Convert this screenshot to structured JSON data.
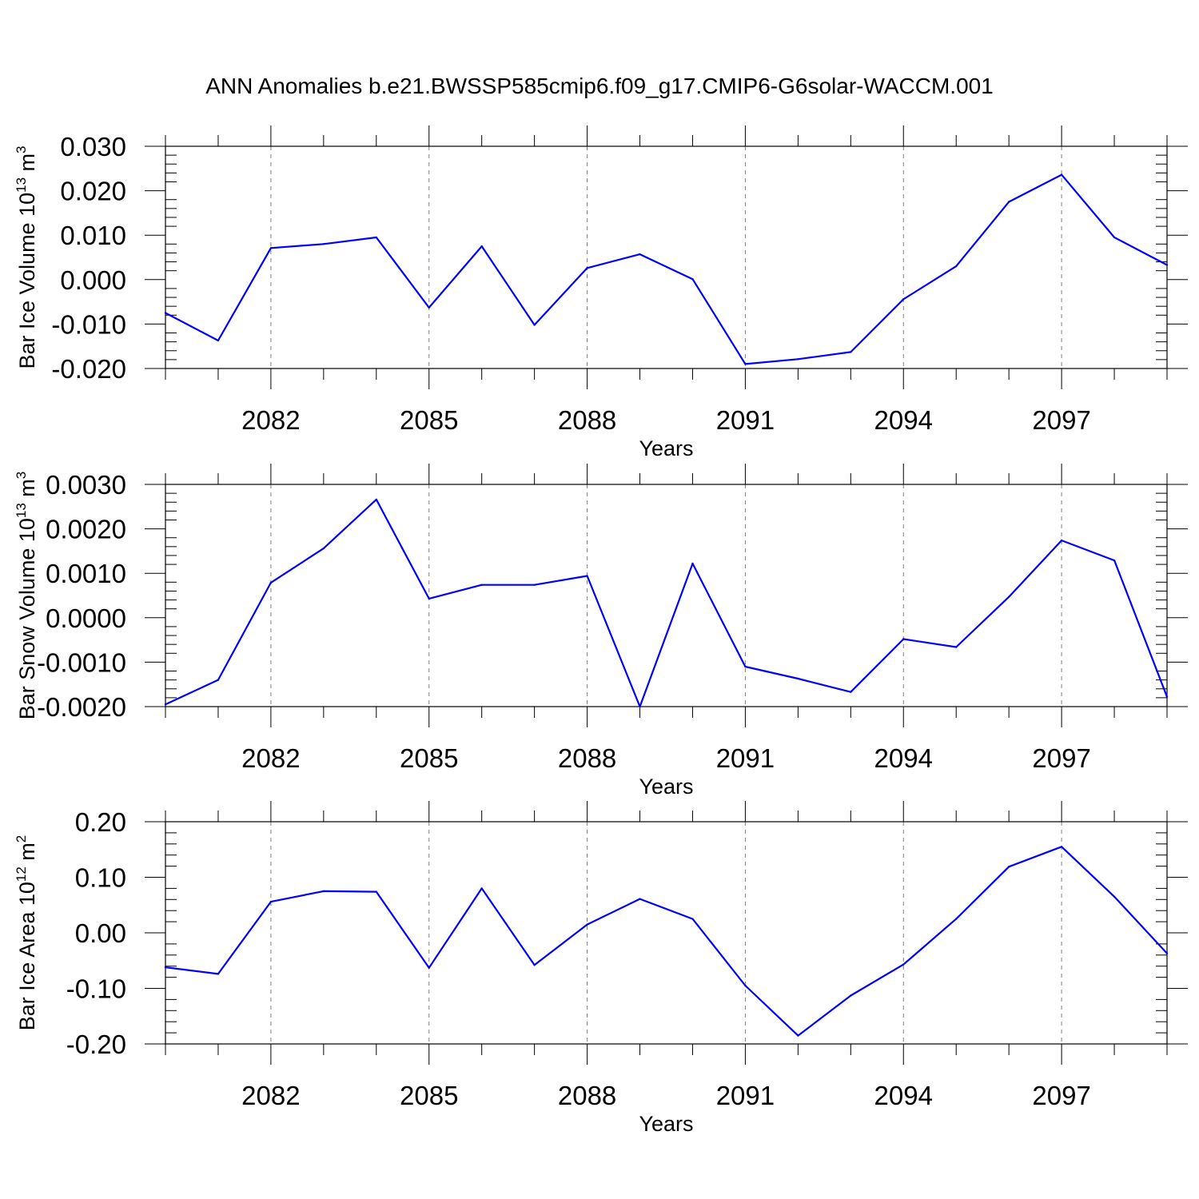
{
  "title": "ANN Anomalies b.e21.BWSSP585cmip6.f09_g17.CMIP6-G6solar-WACCM.001",
  "colors": {
    "line": "#0000ff",
    "axis": "#000000",
    "grid": "#808080"
  },
  "chart_data": [
    {
      "type": "line",
      "xlabel": "Years",
      "ylabel": "Bar Ice Volume 10",
      "ylabel_exp": "13",
      "ylabel_unit": " m",
      "ylabel_unit_exp": "3",
      "xlim": [
        2080,
        2099
      ],
      "ylim": [
        -0.02,
        0.03
      ],
      "yticks": [
        "0.030",
        "0.020",
        "0.010",
        "0.000",
        "-0.010",
        "-0.020"
      ],
      "ytick_values": [
        0.03,
        0.02,
        0.01,
        0.0,
        -0.01,
        -0.02
      ],
      "xticks": [
        "2082",
        "2085",
        "2088",
        "2091",
        "2094",
        "2097"
      ],
      "xtick_values": [
        2082,
        2085,
        2088,
        2091,
        2094,
        2097
      ],
      "grid": "vertical dashed at labeled years",
      "x": [
        2080,
        2081,
        2082,
        2083,
        2084,
        2085,
        2086,
        2087,
        2088,
        2089,
        2090,
        2091,
        2092,
        2093,
        2094,
        2095,
        2096,
        2097,
        2098,
        2099
      ],
      "values": [
        -0.0075,
        -0.0137,
        0.0071,
        0.008,
        0.0095,
        -0.0063,
        0.0075,
        -0.0102,
        0.0026,
        0.0057,
        0.0001,
        -0.019,
        -0.0179,
        -0.0163,
        -0.0044,
        0.003,
        0.0175,
        0.0236,
        0.0095,
        0.0033
      ]
    },
    {
      "type": "line",
      "xlabel": "Years",
      "ylabel": "Bar Snow Volume 10",
      "ylabel_exp": "13",
      "ylabel_unit": " m",
      "ylabel_unit_exp": "3",
      "xlim": [
        2080,
        2099
      ],
      "ylim": [
        -0.002,
        0.003
      ],
      "yticks": [
        "0.0030",
        "0.0020",
        "0.0010",
        "0.0000",
        "-0.0010",
        "-0.0020"
      ],
      "ytick_values": [
        0.003,
        0.002,
        0.001,
        0.0,
        -0.001,
        -0.002
      ],
      "xticks": [
        "2082",
        "2085",
        "2088",
        "2091",
        "2094",
        "2097"
      ],
      "xtick_values": [
        2082,
        2085,
        2088,
        2091,
        2094,
        2097
      ],
      "grid": "vertical dashed at labeled years",
      "x": [
        2080,
        2081,
        2082,
        2083,
        2084,
        2085,
        2086,
        2087,
        2088,
        2089,
        2090,
        2091,
        2092,
        2093,
        2094,
        2095,
        2096,
        2097,
        2098,
        2099
      ],
      "values": [
        -0.00195,
        -0.0014,
        0.00079,
        0.00156,
        0.00266,
        0.00043,
        0.00074,
        0.00074,
        0.00094,
        -0.002,
        0.00122,
        -0.0011,
        -0.00137,
        -0.00167,
        -0.00048,
        -0.00066,
        0.00047,
        0.00174,
        0.00129,
        -0.00178
      ]
    },
    {
      "type": "line",
      "xlabel": "Years",
      "ylabel": "Bar Ice Area 10",
      "ylabel_exp": "12",
      "ylabel_unit": " m",
      "ylabel_unit_exp": "2",
      "xlim": [
        2080,
        2099
      ],
      "ylim": [
        -0.2,
        0.2
      ],
      "yticks": [
        "0.20",
        "0.10",
        "0.00",
        "-0.10",
        "-0.20"
      ],
      "ytick_values": [
        0.2,
        0.1,
        0.0,
        -0.1,
        -0.2
      ],
      "xticks": [
        "2082",
        "2085",
        "2088",
        "2091",
        "2094",
        "2097"
      ],
      "xtick_values": [
        2082,
        2085,
        2088,
        2091,
        2094,
        2097
      ],
      "grid": "vertical dashed at labeled years",
      "x": [
        2080,
        2081,
        2082,
        2083,
        2084,
        2085,
        2086,
        2087,
        2088,
        2089,
        2090,
        2091,
        2092,
        2093,
        2094,
        2095,
        2096,
        2097,
        2098,
        2099
      ],
      "values": [
        -0.062,
        -0.074,
        0.056,
        0.075,
        0.074,
        -0.063,
        0.08,
        -0.058,
        0.015,
        0.061,
        0.025,
        -0.095,
        -0.185,
        -0.113,
        -0.057,
        0.025,
        0.119,
        0.155,
        0.065,
        -0.037
      ]
    }
  ]
}
